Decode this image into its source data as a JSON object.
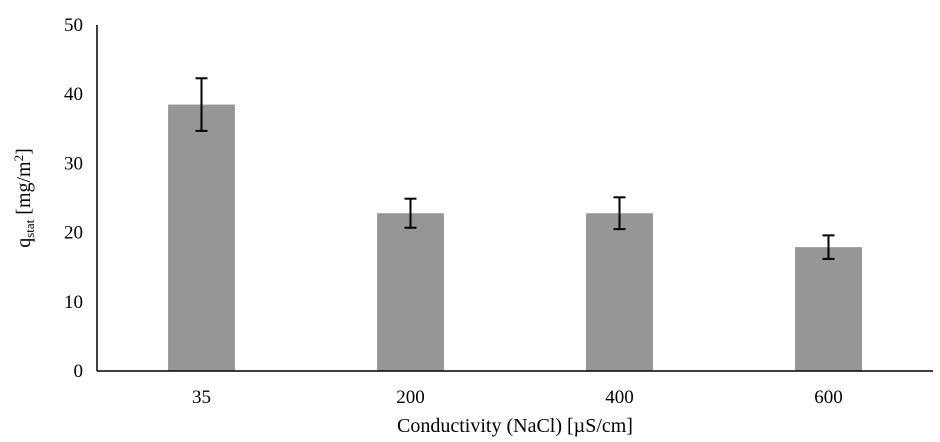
{
  "chart_data": {
    "type": "bar",
    "title": "",
    "xlabel": "Conductivity (NaCl) [µS/cm]",
    "ylabel": {
      "main": "q",
      "subscript": "stat",
      "unit_prefix": " [mg/m",
      "unit_superscript": "2",
      "unit_suffix": "]"
    },
    "categories": [
      "35",
      "200",
      "400",
      "600"
    ],
    "values": [
      38.5,
      22.8,
      22.8,
      17.9
    ],
    "error": [
      3.8,
      2.1,
      2.3,
      1.7
    ],
    "ylim": [
      0,
      50
    ],
    "yticks": [
      "0",
      "10",
      "20",
      "30",
      "40",
      "50"
    ],
    "grid": false,
    "legend": "none",
    "colors": {
      "bar": "#969696",
      "axis": "#000000",
      "error_bar": "#000000"
    }
  }
}
